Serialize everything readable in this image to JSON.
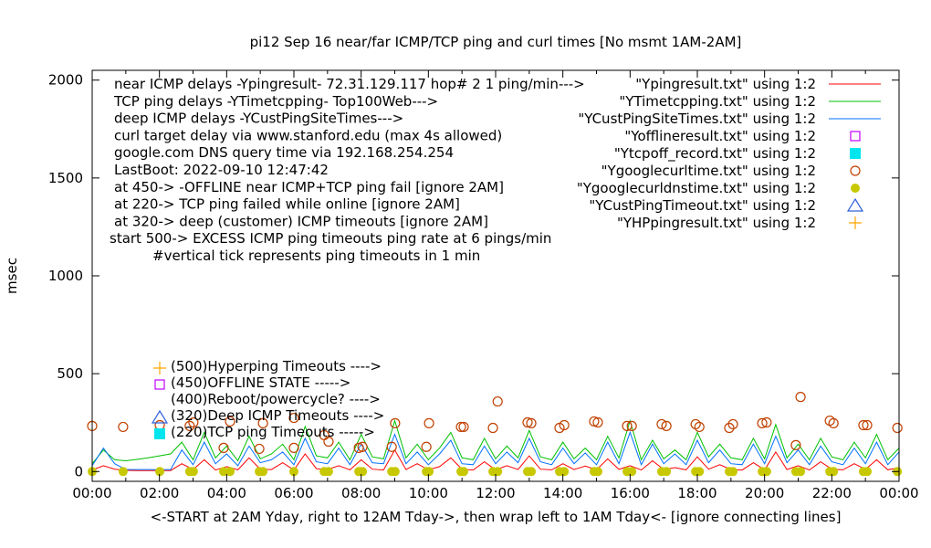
{
  "chart_data": {
    "type": "line",
    "title": "pi12 Sep 16  near/far ICMP/TCP ping and curl times [No msmt 1AM-2AM]",
    "xlabel": "<-START at 2AM Yday, right to 12AM Tday->, then wrap left to 1AM Tday<- [ignore connecting lines]",
    "ylabel": "msec",
    "xlim_hours": [
      0,
      24
    ],
    "ylim": [
      -50,
      2050
    ],
    "x_tick_labels": [
      "00:00",
      "02:00",
      "04:00",
      "06:00",
      "08:00",
      "10:00",
      "12:00",
      "14:00",
      "16:00",
      "18:00",
      "20:00",
      "22:00",
      "00:00"
    ],
    "y_ticks": [
      0,
      500,
      1000,
      1500,
      2000
    ],
    "grid": false,
    "legend_position": "top-right",
    "notes": [
      "near ICMP delays -Ypingresult- 72.31.129.117 hop# 2 1 ping/min--->",
      "TCP ping delays -YTimetcpping- Top100Web--->",
      "deep ICMP delays -YCustPingSiteTimes--->",
      "curl target delay via www.stanford.edu (max 4s allowed)",
      "google.com DNS query time via 192.168.254.254",
      "LastBoot: 2022-09-10 12:47:42",
      "at 450-> -OFFLINE near ICMP+TCP ping fail [ignore 2AM]",
      "at 220-> TCP ping failed while online [ignore 2AM]",
      "at 320-> deep (customer) ICMP timeouts [ignore 2AM]",
      "start 500-> EXCESS ICMP ping timeouts ping rate at 6 pings/min",
      "#vertical tick represents ping timeouts in 1 min"
    ],
    "markers_key": [
      {
        "label": "(500)Hyperping Timeouts ---->",
        "symbol": "plus",
        "color": "#ffa500"
      },
      {
        "label": "(450)OFFLINE STATE ----->",
        "symbol": "open-square",
        "color": "#c000ff"
      },
      {
        "label": "(400)Reboot/powercycle? ---->",
        "symbol": "none",
        "color": "#000000"
      },
      {
        "label": "(320)Deep ICMP Timeouts ---->",
        "symbol": "open-triangle",
        "color": "#3060e0"
      },
      {
        "label": "(220)TCP ping Timeouts ----->",
        "symbol": "filled-square",
        "color": "#00e5ee"
      }
    ],
    "series": [
      {
        "name": "\"Ypingresult.txt\" using 1:2",
        "style": "line",
        "color": "#ff0000",
        "x_step_minutes": 20,
        "values": [
          8,
          30,
          12,
          6,
          5,
          5,
          5,
          5,
          40,
          10,
          60,
          8,
          25,
          9,
          70,
          12,
          10,
          45,
          8,
          90,
          15,
          10,
          30,
          9,
          60,
          12,
          8,
          110,
          10,
          40,
          9,
          25,
          70,
          11,
          8,
          50,
          9,
          30,
          10,
          80,
          12,
          9,
          40,
          10,
          28,
          9,
          65,
          11,
          30,
          8,
          55,
          10,
          20,
          9,
          75,
          12,
          35,
          10,
          8,
          45,
          9,
          100,
          10,
          30,
          8,
          50,
          12,
          9,
          40,
          11,
          60,
          9,
          20
        ]
      },
      {
        "name": "\"YTimetcpping.txt\" using 1:2",
        "style": "line",
        "color": "#00c000",
        "x_step_minutes": 20,
        "values": [
          40,
          110,
          60,
          55,
          62,
          70,
          80,
          90,
          150,
          60,
          200,
          70,
          130,
          55,
          180,
          65,
          90,
          140,
          60,
          230,
          80,
          70,
          150,
          60,
          190,
          75,
          65,
          260,
          70,
          140,
          60,
          120,
          200,
          70,
          60,
          170,
          65,
          130,
          70,
          210,
          75,
          60,
          150,
          65,
          120,
          60,
          180,
          70,
          260,
          60,
          160,
          65,
          110,
          60,
          200,
          75,
          140,
          70,
          60,
          170,
          65,
          240,
          70,
          140,
          60,
          170,
          75,
          60,
          150,
          70,
          190,
          60,
          120
        ]
      },
      {
        "name": "\"YCustPingSiteTimes.txt\" using 1:2",
        "style": "line",
        "color": "#0070ff",
        "x_step_minutes": 20,
        "values": [
          30,
          120,
          40,
          10,
          10,
          10,
          10,
          10,
          110,
          35,
          150,
          40,
          90,
          30,
          130,
          45,
          60,
          100,
          35,
          170,
          50,
          40,
          120,
          35,
          140,
          45,
          40,
          190,
          40,
          100,
          35,
          90,
          160,
          40,
          35,
          130,
          40,
          100,
          45,
          170,
          50,
          35,
          120,
          40,
          95,
          35,
          150,
          40,
          200,
          35,
          140,
          40,
          90,
          35,
          160,
          45,
          110,
          40,
          35,
          140,
          40,
          180,
          45,
          110,
          35,
          130,
          50,
          35,
          120,
          40,
          150,
          35,
          100
        ]
      },
      {
        "name": "\"Yofflineresult.txt\" using 1:2",
        "style": "points",
        "symbol": "open-square",
        "color": "#c000ff",
        "points": []
      },
      {
        "name": "\"Ytcpoff_record.txt\" using 1:2",
        "style": "points",
        "symbol": "filled-square",
        "color": "#00e5ee",
        "points": []
      },
      {
        "name": "\"Ygooglecurltime.txt\" using 1:2",
        "style": "points",
        "symbol": "open-circle",
        "color": "#c04000",
        "points": [
          [
            0.0,
            233
          ],
          [
            0.92,
            228
          ],
          [
            2.01,
            237
          ],
          [
            2.9,
            233
          ],
          [
            3.01,
            251
          ],
          [
            3.91,
            121
          ],
          [
            4.1,
            256
          ],
          [
            4.97,
            116
          ],
          [
            5.08,
            247
          ],
          [
            6.0,
            121
          ],
          [
            6.0,
            274
          ],
          [
            6.9,
            186
          ],
          [
            7.03,
            153
          ],
          [
            7.93,
            121
          ],
          [
            8.04,
            126
          ],
          [
            8.91,
            126
          ],
          [
            9.01,
            247
          ],
          [
            9.94,
            126
          ],
          [
            10.02,
            247
          ],
          [
            10.97,
            228
          ],
          [
            11.05,
            228
          ],
          [
            11.92,
            223
          ],
          [
            12.06,
            358
          ],
          [
            12.95,
            251
          ],
          [
            13.06,
            247
          ],
          [
            13.9,
            223
          ],
          [
            14.04,
            237
          ],
          [
            14.93,
            256
          ],
          [
            15.04,
            251
          ],
          [
            15.91,
            233
          ],
          [
            16.05,
            233
          ],
          [
            16.94,
            242
          ],
          [
            17.08,
            233
          ],
          [
            17.95,
            242
          ],
          [
            18.06,
            228
          ],
          [
            18.95,
            223
          ],
          [
            19.06,
            242
          ],
          [
            19.93,
            247
          ],
          [
            20.06,
            251
          ],
          [
            20.93,
            135
          ],
          [
            21.07,
            381
          ],
          [
            21.94,
            260
          ],
          [
            22.05,
            247
          ],
          [
            22.94,
            237
          ],
          [
            23.05,
            237
          ],
          [
            23.95,
            223
          ]
        ]
      },
      {
        "name": "\"Ygooglecurldnstime.txt\" using 1:2",
        "style": "points",
        "symbol": "filled-circle",
        "color": "#c8c800",
        "points": [
          [
            0.0,
            0
          ],
          [
            0.92,
            0
          ],
          [
            2.01,
            0
          ],
          [
            2.9,
            0
          ],
          [
            3.01,
            0
          ],
          [
            3.91,
            0
          ],
          [
            4.1,
            0
          ],
          [
            4.97,
            0
          ],
          [
            5.08,
            0
          ],
          [
            6.0,
            0
          ],
          [
            6.9,
            0
          ],
          [
            7.03,
            0
          ],
          [
            7.93,
            0
          ],
          [
            8.04,
            0
          ],
          [
            8.91,
            0
          ],
          [
            9.01,
            0
          ],
          [
            9.94,
            0
          ],
          [
            10.02,
            0
          ],
          [
            10.97,
            0
          ],
          [
            11.05,
            0
          ],
          [
            11.92,
            0
          ],
          [
            12.06,
            0
          ],
          [
            12.95,
            0
          ],
          [
            13.06,
            0
          ],
          [
            13.9,
            0
          ],
          [
            14.04,
            0
          ],
          [
            14.93,
            0
          ],
          [
            15.04,
            0
          ],
          [
            15.91,
            0
          ],
          [
            16.05,
            0
          ],
          [
            16.94,
            0
          ],
          [
            17.08,
            0
          ],
          [
            17.95,
            0
          ],
          [
            18.06,
            0
          ],
          [
            18.95,
            0
          ],
          [
            19.06,
            0
          ],
          [
            19.93,
            0
          ],
          [
            20.06,
            0
          ],
          [
            20.93,
            0
          ],
          [
            21.07,
            0
          ],
          [
            21.94,
            0
          ],
          [
            22.05,
            0
          ],
          [
            22.94,
            0
          ],
          [
            23.05,
            0
          ],
          [
            23.95,
            0
          ]
        ]
      },
      {
        "name": "\"YCustPingTimeout.txt\" using 1:2",
        "style": "points",
        "symbol": "open-triangle",
        "color": "#3060e0",
        "points": []
      },
      {
        "name": "\"YHPpingresult.txt\" using 1:2",
        "style": "points",
        "symbol": "plus",
        "color": "#ffa500",
        "points": []
      }
    ]
  }
}
